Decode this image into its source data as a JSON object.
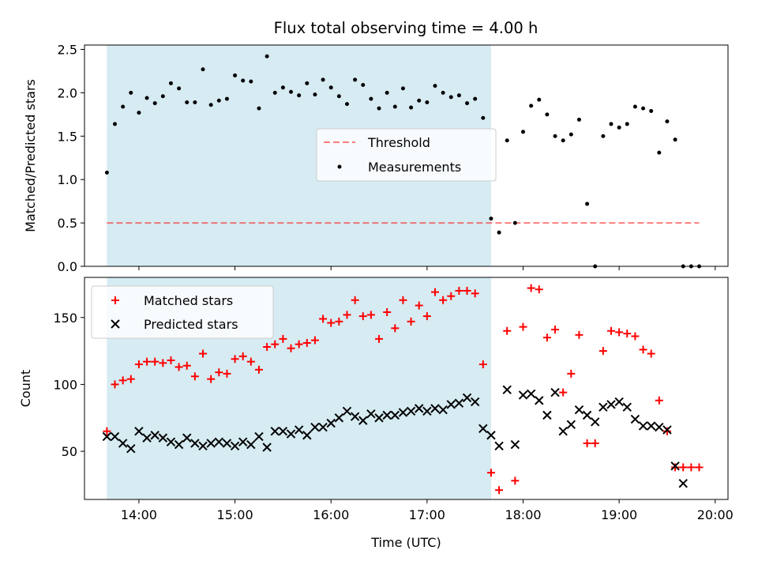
{
  "title": "Flux total observing time = 4.00 h",
  "colors": {
    "span": "#add8e6",
    "span_alpha": 0.5,
    "threshold": "#ff0000",
    "threshold_alpha": 0.5,
    "measurements": "#000000",
    "matched": "#ff0000",
    "predicted": "#000000"
  },
  "chart_data": [
    {
      "type": "scatter",
      "panel": "top",
      "ylabel": "Matched/Predicted stars",
      "xlim": [
        "13:26",
        "20:08"
      ],
      "ylim": [
        0,
        2.55
      ],
      "yticks": [
        {
          "value": 0.0,
          "label": "0.0"
        },
        {
          "value": 0.5,
          "label": "0.5"
        },
        {
          "value": 1.0,
          "label": "1.0"
        },
        {
          "value": 1.5,
          "label": "1.5"
        },
        {
          "value": 2.0,
          "label": "2.0"
        },
        {
          "value": 2.5,
          "label": "2.5"
        }
      ],
      "observing_span": [
        "13:40",
        "17:40"
      ],
      "legend": {
        "position": "center",
        "entries": [
          "Threshold",
          "Measurements"
        ]
      },
      "threshold": {
        "name": "Threshold",
        "y": 0.5,
        "x_range": [
          "13:40",
          "19:50"
        ]
      },
      "series": [
        {
          "name": "Measurements",
          "marker": "dot",
          "points": [
            [
              "13:40",
              1.08
            ],
            [
              "13:45",
              1.64
            ],
            [
              "13:50",
              1.84
            ],
            [
              "13:55",
              2.0
            ],
            [
              "14:00",
              1.77
            ],
            [
              "14:05",
              1.94
            ],
            [
              "14:10",
              1.88
            ],
            [
              "14:15",
              1.96
            ],
            [
              "14:20",
              2.11
            ],
            [
              "14:25",
              2.05
            ],
            [
              "14:30",
              1.89
            ],
            [
              "14:35",
              1.89
            ],
            [
              "14:40",
              2.27
            ],
            [
              "14:45",
              1.86
            ],
            [
              "14:50",
              1.91
            ],
            [
              "14:55",
              1.93
            ],
            [
              "15:00",
              2.2
            ],
            [
              "15:05",
              2.14
            ],
            [
              "15:10",
              2.13
            ],
            [
              "15:15",
              1.82
            ],
            [
              "15:20",
              2.42
            ],
            [
              "15:25",
              2.0
            ],
            [
              "15:30",
              2.06
            ],
            [
              "15:35",
              2.01
            ],
            [
              "15:40",
              1.97
            ],
            [
              "15:45",
              2.11
            ],
            [
              "15:50",
              1.98
            ],
            [
              "15:55",
              2.15
            ],
            [
              "16:00",
              2.06
            ],
            [
              "16:05",
              1.96
            ],
            [
              "16:10",
              1.87
            ],
            [
              "16:15",
              2.15
            ],
            [
              "16:20",
              2.09
            ],
            [
              "16:25",
              1.93
            ],
            [
              "16:30",
              1.82
            ],
            [
              "16:35",
              2.0
            ],
            [
              "16:40",
              1.84
            ],
            [
              "16:45",
              2.05
            ],
            [
              "16:50",
              1.83
            ],
            [
              "16:55",
              1.91
            ],
            [
              "17:00",
              1.89
            ],
            [
              "17:05",
              2.08
            ],
            [
              "17:10",
              2.0
            ],
            [
              "17:15",
              1.95
            ],
            [
              "17:20",
              1.97
            ],
            [
              "17:25",
              1.88
            ],
            [
              "17:30",
              1.93
            ],
            [
              "17:35",
              1.71
            ],
            [
              "17:40",
              0.55
            ],
            [
              "17:45",
              0.39
            ],
            [
              "17:50",
              1.45
            ],
            [
              "17:55",
              0.5
            ],
            [
              "18:00",
              1.55
            ],
            [
              "18:05",
              1.85
            ],
            [
              "18:10",
              1.92
            ],
            [
              "18:15",
              1.75
            ],
            [
              "18:20",
              1.5
            ],
            [
              "18:25",
              1.45
            ],
            [
              "18:30",
              1.52
            ],
            [
              "18:35",
              1.69
            ],
            [
              "18:40",
              0.72
            ],
            [
              "18:45",
              0.0
            ],
            [
              "18:50",
              1.5
            ],
            [
              "18:55",
              1.64
            ],
            [
              "19:00",
              1.6
            ],
            [
              "19:05",
              1.64
            ],
            [
              "19:10",
              1.84
            ],
            [
              "19:15",
              1.82
            ],
            [
              "19:20",
              1.79
            ],
            [
              "19:25",
              1.31
            ],
            [
              "19:30",
              1.67
            ],
            [
              "19:35",
              1.46
            ],
            [
              "19:40",
              0.0
            ],
            [
              "19:45",
              0.0
            ],
            [
              "19:50",
              0.0
            ]
          ]
        }
      ]
    },
    {
      "type": "scatter",
      "panel": "bottom",
      "xlabel": "Time (UTC)",
      "ylabel": "Count",
      "xlim": [
        "13:26",
        "20:08"
      ],
      "ylim": [
        14,
        180
      ],
      "xticks": [
        "14:00",
        "15:00",
        "16:00",
        "17:00",
        "18:00",
        "19:00",
        "20:00"
      ],
      "yticks": [
        {
          "value": 50,
          "label": "50"
        },
        {
          "value": 100,
          "label": "100"
        },
        {
          "value": 150,
          "label": "150"
        }
      ],
      "observing_span": [
        "13:40",
        "17:40"
      ],
      "legend": {
        "position": "upper left",
        "entries": [
          "Matched stars",
          "Predicted stars"
        ]
      },
      "series": [
        {
          "name": "Matched stars",
          "marker": "plus",
          "points": [
            [
              "13:40",
              65
            ],
            [
              "13:45",
              100
            ],
            [
              "13:50",
              103
            ],
            [
              "13:55",
              104
            ],
            [
              "14:00",
              115
            ],
            [
              "14:05",
              117
            ],
            [
              "14:10",
              117
            ],
            [
              "14:15",
              116
            ],
            [
              "14:20",
              118
            ],
            [
              "14:25",
              113
            ],
            [
              "14:30",
              114
            ],
            [
              "14:35",
              106
            ],
            [
              "14:40",
              123
            ],
            [
              "14:45",
              104
            ],
            [
              "14:50",
              109
            ],
            [
              "14:55",
              108
            ],
            [
              "15:00",
              119
            ],
            [
              "15:05",
              121
            ],
            [
              "15:10",
              117
            ],
            [
              "15:15",
              111
            ],
            [
              "15:20",
              128
            ],
            [
              "15:25",
              130
            ],
            [
              "15:30",
              134
            ],
            [
              "15:35",
              127
            ],
            [
              "15:40",
              130
            ],
            [
              "15:45",
              131
            ],
            [
              "15:50",
              133
            ],
            [
              "15:55",
              149
            ],
            [
              "16:00",
              146
            ],
            [
              "16:05",
              147
            ],
            [
              "16:10",
              152
            ],
            [
              "16:15",
              163
            ],
            [
              "16:20",
              151
            ],
            [
              "16:25",
              152
            ],
            [
              "16:30",
              134
            ],
            [
              "16:35",
              154
            ],
            [
              "16:40",
              142
            ],
            [
              "16:45",
              163
            ],
            [
              "16:50",
              147
            ],
            [
              "16:55",
              159
            ],
            [
              "17:00",
              151
            ],
            [
              "17:05",
              169
            ],
            [
              "17:10",
              163
            ],
            [
              "17:15",
              166
            ],
            [
              "17:20",
              170
            ],
            [
              "17:25",
              170
            ],
            [
              "17:30",
              168
            ],
            [
              "17:35",
              115
            ],
            [
              "17:40",
              34
            ],
            [
              "17:45",
              21
            ],
            [
              "17:50",
              140
            ],
            [
              "17:55",
              28
            ],
            [
              "18:00",
              143
            ],
            [
              "18:05",
              172
            ],
            [
              "18:10",
              171
            ],
            [
              "18:15",
              135
            ],
            [
              "18:20",
              141
            ],
            [
              "18:25",
              94
            ],
            [
              "18:30",
              108
            ],
            [
              "18:35",
              137
            ],
            [
              "18:40",
              56
            ],
            [
              "18:45",
              56
            ],
            [
              "18:50",
              125
            ],
            [
              "18:55",
              140
            ],
            [
              "19:00",
              139
            ],
            [
              "19:05",
              138
            ],
            [
              "19:10",
              136
            ],
            [
              "19:15",
              126
            ],
            [
              "19:20",
              123
            ],
            [
              "19:25",
              88
            ],
            [
              "19:30",
              65
            ],
            [
              "19:35",
              38
            ],
            [
              "19:40",
              38
            ],
            [
              "19:45",
              38
            ],
            [
              "19:50",
              38
            ]
          ]
        },
        {
          "name": "Predicted stars",
          "marker": "x",
          "points": [
            [
              "13:40",
              61
            ],
            [
              "13:45",
              61
            ],
            [
              "13:50",
              56
            ],
            [
              "13:55",
              52
            ],
            [
              "14:00",
              65
            ],
            [
              "14:05",
              60
            ],
            [
              "14:10",
              62
            ],
            [
              "14:15",
              60
            ],
            [
              "14:20",
              57
            ],
            [
              "14:25",
              55
            ],
            [
              "14:30",
              60
            ],
            [
              "14:35",
              56
            ],
            [
              "14:40",
              54
            ],
            [
              "14:45",
              56
            ],
            [
              "14:50",
              57
            ],
            [
              "14:55",
              56
            ],
            [
              "15:00",
              54
            ],
            [
              "15:05",
              57
            ],
            [
              "15:10",
              55
            ],
            [
              "15:15",
              61
            ],
            [
              "15:20",
              53
            ],
            [
              "15:25",
              65
            ],
            [
              "15:30",
              65
            ],
            [
              "15:35",
              63
            ],
            [
              "15:40",
              66
            ],
            [
              "15:45",
              62
            ],
            [
              "15:50",
              68
            ],
            [
              "15:55",
              68
            ],
            [
              "16:00",
              71
            ],
            [
              "16:05",
              75
            ],
            [
              "16:10",
              80
            ],
            [
              "16:15",
              76
            ],
            [
              "16:20",
              73
            ],
            [
              "16:25",
              78
            ],
            [
              "16:30",
              75
            ],
            [
              "16:35",
              77
            ],
            [
              "16:40",
              77
            ],
            [
              "16:45",
              79
            ],
            [
              "16:50",
              80
            ],
            [
              "16:55",
              82
            ],
            [
              "17:00",
              80
            ],
            [
              "17:05",
              82
            ],
            [
              "17:10",
              81
            ],
            [
              "17:15",
              85
            ],
            [
              "17:20",
              86
            ],
            [
              "17:25",
              90
            ],
            [
              "17:30",
              87
            ],
            [
              "17:35",
              67
            ],
            [
              "17:40",
              62
            ],
            [
              "17:45",
              54
            ],
            [
              "17:50",
              96
            ],
            [
              "17:55",
              55
            ],
            [
              "18:00",
              92
            ],
            [
              "18:05",
              93
            ],
            [
              "18:10",
              88
            ],
            [
              "18:15",
              77
            ],
            [
              "18:20",
              94
            ],
            [
              "18:25",
              65
            ],
            [
              "18:30",
              70
            ],
            [
              "18:35",
              81
            ],
            [
              "18:40",
              77
            ],
            [
              "18:45",
              72
            ],
            [
              "18:50",
              83
            ],
            [
              "18:55",
              85
            ],
            [
              "19:00",
              87
            ],
            [
              "19:05",
              83
            ],
            [
              "19:10",
              74
            ],
            [
              "19:15",
              69
            ],
            [
              "19:20",
              69
            ],
            [
              "19:25",
              68
            ],
            [
              "19:30",
              66
            ],
            [
              "19:35",
              39
            ],
            [
              "19:40",
              26
            ]
          ]
        }
      ]
    }
  ]
}
